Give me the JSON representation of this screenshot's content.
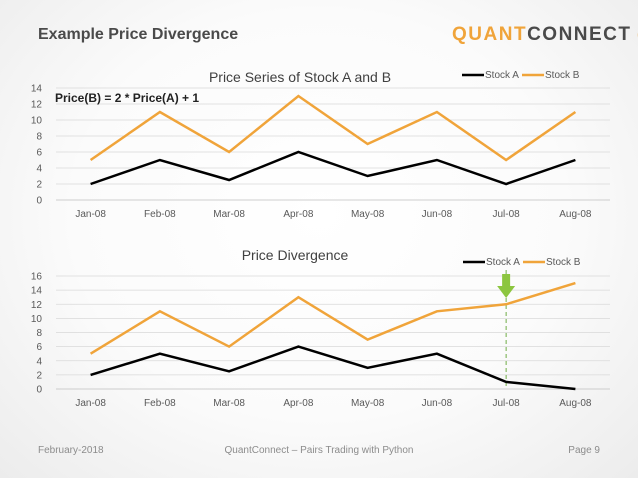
{
  "slide": {
    "title": "Example Price Divergence",
    "logo_quant": "QUANT",
    "logo_connect": "CONNECT"
  },
  "footer": {
    "date": "February-2018",
    "center": "QuantConnect – Pairs Trading with Python",
    "page": "Page 9"
  },
  "colors": {
    "stock_a": "#000000",
    "stock_b": "#f0a43a",
    "marker_arrow": "#8cc63f",
    "marker_line": "#70ad47",
    "grid": "#d9d9d9"
  },
  "chart_data": [
    {
      "type": "line",
      "title": "Price Series of Stock A and B",
      "annotation": "Price(B) = 2 * Price(A) + 1",
      "categories": [
        "Jan-08",
        "Feb-08",
        "Mar-08",
        "Apr-08",
        "May-08",
        "Jun-08",
        "Jul-08",
        "Aug-08"
      ],
      "series": [
        {
          "name": "Stock A",
          "values": [
            2,
            5,
            2.5,
            6,
            3,
            5,
            2,
            5
          ]
        },
        {
          "name": "Stock B",
          "values": [
            5,
            11,
            6,
            13,
            7,
            11,
            5,
            11
          ]
        }
      ],
      "ylim": [
        0,
        14
      ],
      "yticks": [
        0,
        2,
        4,
        6,
        8,
        10,
        12,
        14
      ],
      "grid": true,
      "legend": "top-right"
    },
    {
      "type": "line",
      "title": "Price Divergence",
      "categories": [
        "Jan-08",
        "Feb-08",
        "Mar-08",
        "Apr-08",
        "May-08",
        "Jun-08",
        "Jul-08",
        "Aug-08"
      ],
      "series": [
        {
          "name": "Stock A",
          "values": [
            2,
            5,
            2.5,
            6,
            3,
            5,
            1,
            0
          ]
        },
        {
          "name": "Stock B",
          "values": [
            5,
            11,
            6,
            13,
            7,
            11,
            12,
            15
          ]
        }
      ],
      "ylim": [
        0,
        16
      ],
      "yticks": [
        0,
        2,
        4,
        6,
        8,
        10,
        12,
        14,
        16
      ],
      "grid": true,
      "legend": "top-right",
      "marker_category": "Jul-08"
    }
  ]
}
